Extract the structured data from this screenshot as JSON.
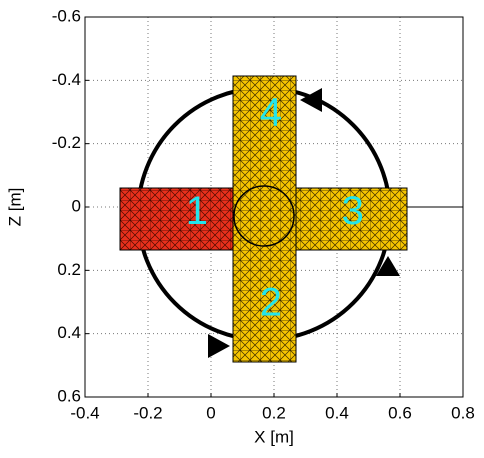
{
  "chart_data": {
    "type": "figure",
    "xlabel": "X [m]",
    "ylabel": "Z [m]",
    "xlim": [
      -0.4,
      0.8
    ],
    "xticks": [
      -0.4,
      -0.2,
      0,
      0.2,
      0.4,
      0.6,
      0.8
    ],
    "ylim": [
      -0.6,
      0.6
    ],
    "yticks": [
      -0.6,
      -0.4,
      -0.2,
      0,
      0.2,
      0.4,
      0.6
    ],
    "y_reversed": true,
    "grid": true,
    "annotations": [
      {
        "text": "1",
        "x": -0.045,
        "z": 0.02,
        "color": "#22e5ec"
      },
      {
        "text": "2",
        "x": 0.19,
        "z": 0.31,
        "color": "#22e5ec"
      },
      {
        "text": "3",
        "x": 0.45,
        "z": 0.02,
        "color": "#22e5ec"
      },
      {
        "text": "4",
        "x": 0.19,
        "z": -0.29,
        "color": "#22e5ec"
      }
    ]
  }
}
